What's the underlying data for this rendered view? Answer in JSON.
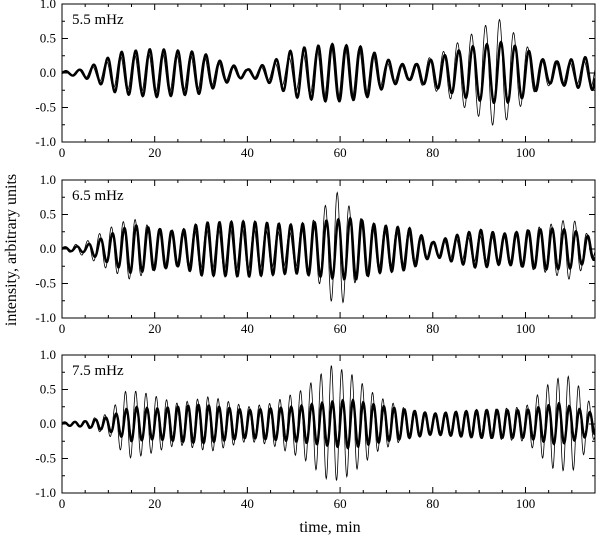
{
  "figure": {
    "ylabel": "intensity, arbitrary units",
    "xlabel": "time, min"
  },
  "chart_data": [
    {
      "type": "line",
      "panel_label": "5.5 mHz",
      "xlim": [
        0,
        115
      ],
      "ylim": [
        -1.0,
        1.0
      ],
      "x_ticks": [
        0,
        20,
        40,
        60,
        80,
        100
      ],
      "y_ticks": [
        "-1.0",
        "-0.5",
        "0.0",
        "0.5",
        "1.0"
      ],
      "grid": false,
      "series": [
        {
          "style": "thick",
          "frequency_mhz": 5.5,
          "envelope": [
            [
              0,
              0.02
            ],
            [
              4,
              0.05
            ],
            [
              8,
              0.15
            ],
            [
              12,
              0.3
            ],
            [
              20,
              0.35
            ],
            [
              30,
              0.3
            ],
            [
              35,
              0.15
            ],
            [
              40,
              0.05
            ],
            [
              45,
              0.15
            ],
            [
              50,
              0.35
            ],
            [
              58,
              0.42
            ],
            [
              65,
              0.38
            ],
            [
              70,
              0.2
            ],
            [
              75,
              0.1
            ],
            [
              80,
              0.2
            ],
            [
              88,
              0.38
            ],
            [
              95,
              0.45
            ],
            [
              100,
              0.35
            ],
            [
              105,
              0.15
            ],
            [
              110,
              0.2
            ],
            [
              115,
              0.25
            ]
          ]
        },
        {
          "style": "thin",
          "frequency_mhz": 5.5,
          "envelope": [
            [
              0,
              0.02
            ],
            [
              4,
              0.05
            ],
            [
              8,
              0.12
            ],
            [
              12,
              0.25
            ],
            [
              20,
              0.3
            ],
            [
              30,
              0.25
            ],
            [
              35,
              0.12
            ],
            [
              40,
              0.05
            ],
            [
              45,
              0.12
            ],
            [
              50,
              0.25
            ],
            [
              58,
              0.4
            ],
            [
              65,
              0.35
            ],
            [
              70,
              0.15
            ],
            [
              75,
              0.1
            ],
            [
              82,
              0.3
            ],
            [
              88,
              0.55
            ],
            [
              94,
              0.8
            ],
            [
              98,
              0.55
            ],
            [
              103,
              0.2
            ],
            [
              110,
              0.15
            ],
            [
              115,
              0.2
            ]
          ]
        }
      ]
    },
    {
      "type": "line",
      "panel_label": "6.5 mHz",
      "xlim": [
        0,
        115
      ],
      "ylim": [
        -1.0,
        1.0
      ],
      "x_ticks": [
        0,
        20,
        40,
        60,
        80,
        100
      ],
      "y_ticks": [
        "-1.0",
        "-0.5",
        "0.0",
        "0.5",
        "1.0"
      ],
      "grid": false,
      "series": [
        {
          "style": "thick",
          "frequency_mhz": 6.5,
          "envelope": [
            [
              0,
              0.02
            ],
            [
              5,
              0.05
            ],
            [
              10,
              0.2
            ],
            [
              15,
              0.35
            ],
            [
              20,
              0.3
            ],
            [
              25,
              0.25
            ],
            [
              30,
              0.38
            ],
            [
              40,
              0.4
            ],
            [
              50,
              0.35
            ],
            [
              58,
              0.42
            ],
            [
              63,
              0.45
            ],
            [
              68,
              0.35
            ],
            [
              75,
              0.3
            ],
            [
              80,
              0.1
            ],
            [
              85,
              0.2
            ],
            [
              90,
              0.28
            ],
            [
              95,
              0.22
            ],
            [
              105,
              0.3
            ],
            [
              110,
              0.28
            ],
            [
              115,
              0.15
            ]
          ]
        },
        {
          "style": "thin",
          "frequency_mhz": 6.5,
          "envelope": [
            [
              0,
              0.02
            ],
            [
              5,
              0.1
            ],
            [
              10,
              0.3
            ],
            [
              15,
              0.45
            ],
            [
              20,
              0.3
            ],
            [
              25,
              0.25
            ],
            [
              30,
              0.3
            ],
            [
              40,
              0.3
            ],
            [
              50,
              0.25
            ],
            [
              55,
              0.45
            ],
            [
              58,
              0.75
            ],
            [
              60,
              0.85
            ],
            [
              63,
              0.5
            ],
            [
              68,
              0.3
            ],
            [
              75,
              0.25
            ],
            [
              80,
              0.1
            ],
            [
              85,
              0.15
            ],
            [
              90,
              0.2
            ],
            [
              95,
              0.2
            ],
            [
              105,
              0.35
            ],
            [
              110,
              0.45
            ],
            [
              115,
              0.1
            ]
          ]
        }
      ]
    },
    {
      "type": "line",
      "panel_label": "7.5 mHz",
      "xlim": [
        0,
        115
      ],
      "ylim": [
        -1.0,
        1.0
      ],
      "x_ticks": [
        0,
        20,
        40,
        60,
        80,
        100
      ],
      "y_ticks": [
        "-1.0",
        "-0.5",
        "0.0",
        "0.5",
        "1.0"
      ],
      "grid": false,
      "series": [
        {
          "style": "thick",
          "frequency_mhz": 7.5,
          "envelope": [
            [
              0,
              0.02
            ],
            [
              5,
              0.04
            ],
            [
              10,
              0.1
            ],
            [
              15,
              0.25
            ],
            [
              20,
              0.22
            ],
            [
              30,
              0.28
            ],
            [
              40,
              0.2
            ],
            [
              50,
              0.25
            ],
            [
              58,
              0.32
            ],
            [
              62,
              0.35
            ],
            [
              70,
              0.25
            ],
            [
              80,
              0.15
            ],
            [
              90,
              0.2
            ],
            [
              100,
              0.2
            ],
            [
              107,
              0.3
            ],
            [
              110,
              0.25
            ],
            [
              115,
              0.15
            ]
          ]
        },
        {
          "style": "thin",
          "frequency_mhz": 7.5,
          "envelope": [
            [
              0,
              0.02
            ],
            [
              5,
              0.05
            ],
            [
              10,
              0.15
            ],
            [
              14,
              0.5
            ],
            [
              18,
              0.45
            ],
            [
              25,
              0.3
            ],
            [
              32,
              0.4
            ],
            [
              40,
              0.25
            ],
            [
              45,
              0.3
            ],
            [
              52,
              0.5
            ],
            [
              58,
              0.85
            ],
            [
              62,
              0.75
            ],
            [
              68,
              0.4
            ],
            [
              75,
              0.2
            ],
            [
              80,
              0.15
            ],
            [
              90,
              0.2
            ],
            [
              100,
              0.25
            ],
            [
              106,
              0.65
            ],
            [
              110,
              0.7
            ],
            [
              114,
              0.3
            ],
            [
              115,
              0.2
            ]
          ]
        }
      ]
    }
  ]
}
